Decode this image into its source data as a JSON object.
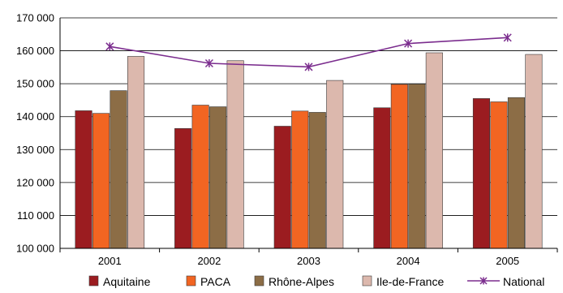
{
  "chart_data": {
    "type": "bar",
    "categories": [
      "2001",
      "2002",
      "2003",
      "2004",
      "2005"
    ],
    "ylim": [
      100000,
      170000
    ],
    "yticks": [
      "100 000",
      "110 000",
      "120 000",
      "130 000",
      "140 000",
      "150 000",
      "160 000",
      "170 000"
    ],
    "ytick_values": [
      100000,
      110000,
      120000,
      130000,
      140000,
      150000,
      160000,
      170000
    ],
    "grid": true,
    "legend_position": "bottom",
    "series": [
      {
        "name": "Aquitaine",
        "type": "bar",
        "color": "#9b1c20",
        "values": [
          141800,
          136400,
          137100,
          142700,
          145500
        ]
      },
      {
        "name": "PACA",
        "type": "bar",
        "color": "#f26522",
        "values": [
          141000,
          143500,
          141700,
          149800,
          144500
        ]
      },
      {
        "name": "Rhône-Alpes",
        "type": "bar",
        "color": "#8c6d46",
        "values": [
          147900,
          143000,
          141300,
          149900,
          145800
        ]
      },
      {
        "name": "Ile-de-France",
        "type": "bar",
        "color": "#dcb8ad",
        "values": [
          158300,
          157000,
          151000,
          159400,
          158900
        ]
      },
      {
        "name": "National",
        "type": "line",
        "color": "#7b2d8e",
        "values": [
          161300,
          156200,
          155100,
          162200,
          164000
        ]
      }
    ]
  }
}
